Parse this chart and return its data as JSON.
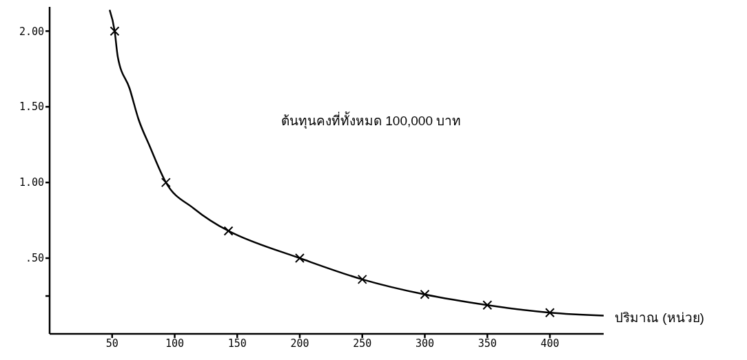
{
  "chart_data": {
    "type": "line",
    "xlabel": "ปริมาณ (หน่วย)",
    "annotations": [
      "ต้นทุนคงที่ทั้งหมด 100,000 บาท"
    ],
    "xlim": [
      0,
      443
    ],
    "xticks": [
      50,
      100,
      150,
      200,
      250,
      300,
      350,
      400
    ],
    "ylim": [
      0,
      2.16
    ],
    "yticks": [
      {
        "value": 0.25,
        "label": null
      },
      {
        "value": 0.5,
        "label": ".50"
      },
      {
        "value": 1,
        "label": "1.00"
      },
      {
        "value": 1.5,
        "label": "1.50"
      },
      {
        "value": 2,
        "label": "2.00"
      }
    ],
    "series": [
      {
        "marker": "none",
        "line_style": "solid",
        "color": "#000000",
        "x": [
          48,
          52,
          54.5,
          64,
          71,
          80,
          93,
          115,
          143,
          148,
          200,
          250,
          300,
          350,
          400,
          443
        ],
        "values": [
          2.14,
          2.0,
          1.83,
          1.62,
          1.42,
          1.24,
          1.0,
          0.83,
          0.68,
          0.66,
          0.5,
          0.36,
          0.26,
          0.19,
          0.14,
          0.12
        ]
      },
      {
        "type": "scatter",
        "marker": "cross",
        "color": "#000000",
        "x": [
          52,
          93,
          143,
          200,
          250,
          300,
          350,
          400
        ],
        "values": [
          2.0,
          1.0,
          0.68,
          0.5,
          0.36,
          0.26,
          0.19,
          0.14
        ]
      }
    ]
  }
}
